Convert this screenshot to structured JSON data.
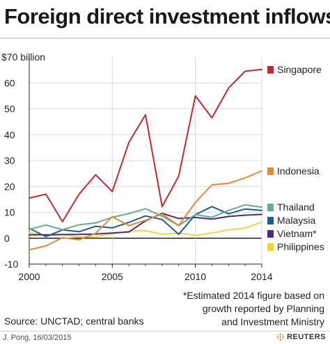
{
  "title": "Foreign direct investment inflows",
  "chart_data": {
    "type": "line",
    "title": "Foreign direct investment inflows",
    "ylabel": "",
    "unit_label": "$70 billion",
    "xlim": [
      2000,
      2014
    ],
    "ylim": [
      -10,
      70
    ],
    "y_ticks": [
      -10,
      0,
      10,
      20,
      30,
      40,
      50,
      60
    ],
    "x_ticks": [
      2000,
      2005,
      2010,
      2014
    ],
    "grid": true,
    "legend_position": "right",
    "x": [
      2000,
      2001,
      2002,
      2003,
      2004,
      2005,
      2006,
      2007,
      2008,
      2009,
      2010,
      2011,
      2012,
      2013,
      2014
    ],
    "series": [
      {
        "name": "Singapore",
        "color": "#c1272d",
        "values": [
          15.5,
          17,
          6.4,
          17,
          24.5,
          18,
          37,
          47.7,
          12.2,
          24,
          55,
          46.5,
          58,
          64.5,
          65.2
        ]
      },
      {
        "name": "Indonesia",
        "color": "#e08a34",
        "values": [
          -4.5,
          -3,
          0.2,
          -0.6,
          1.9,
          8.3,
          4.9,
          6.9,
          9.3,
          4.9,
          13.8,
          20.6,
          21.2,
          23.3,
          26
        ]
      },
      {
        "name": "Thailand",
        "color": "#6ba891",
        "values": [
          3.4,
          5.1,
          3.3,
          5.2,
          5.9,
          8.1,
          9.5,
          11.4,
          8.5,
          4.9,
          9.1,
          8.1,
          10.7,
          12.9,
          12
        ]
      },
      {
        "name": "Malaysia",
        "color": "#1f5d8f",
        "values": [
          3.8,
          0.6,
          3.2,
          2.5,
          4.6,
          4,
          6.1,
          8.6,
          7.2,
          1.5,
          9.1,
          12.2,
          9.4,
          11.3,
          10.7
        ]
      },
      {
        "name": "Vietnam*",
        "color": "#4b2d74",
        "values": [
          1.3,
          1.3,
          1.4,
          1.5,
          1.6,
          2,
          2.4,
          6.7,
          9.6,
          7.6,
          8,
          7.4,
          8.4,
          8.9,
          9.2
        ]
      },
      {
        "name": "Philippines",
        "color": "#f2d43c",
        "values": [
          2.2,
          0.9,
          1.5,
          0.5,
          0.6,
          1.7,
          2.7,
          2.9,
          1.5,
          2,
          1.1,
          2,
          3.2,
          3.9,
          6.2
        ]
      }
    ]
  },
  "footnote": [
    "*Estimated 2014 figure based on",
    "growth reported by Planning",
    "and Investment Ministry"
  ],
  "source": "Source: UNCTAD; central banks",
  "credit": "J. Pong, 16/03/2015",
  "brand": "REUTERS"
}
